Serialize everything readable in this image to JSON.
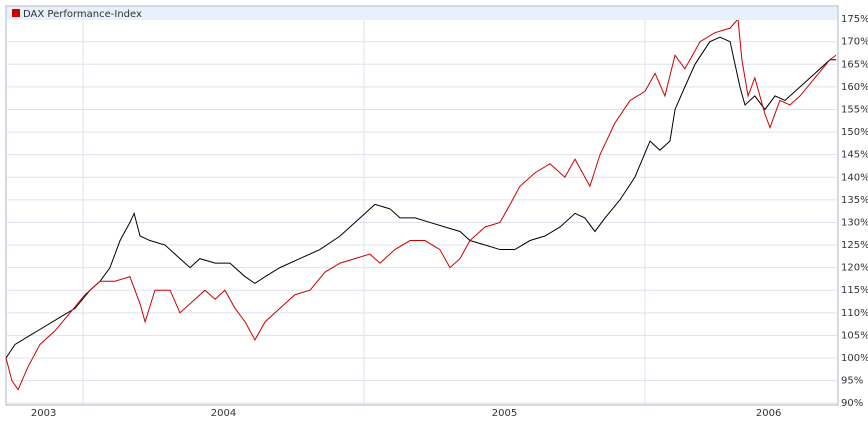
{
  "chart_data": {
    "type": "line",
    "legend": "top-left",
    "grid": true,
    "xlim": [
      2003.726,
      2006.687
    ],
    "xgrid": [
      2004,
      2005,
      2006
    ],
    "xticks": [
      {
        "value": 2003.86,
        "label": "2003"
      },
      {
        "value": 2004.5,
        "label": "2004"
      },
      {
        "value": 2005.5,
        "label": "2005"
      },
      {
        "value": 2006.44,
        "label": "2006"
      }
    ],
    "ylim": [
      89.6,
      177.9
    ],
    "yticks": [
      {
        "value": 90,
        "label": "90%"
      },
      {
        "value": 95,
        "label": "95%"
      },
      {
        "value": 100,
        "label": "100%"
      },
      {
        "value": 105,
        "label": "105%"
      },
      {
        "value": 110,
        "label": "110%"
      },
      {
        "value": 115,
        "label": "115%"
      },
      {
        "value": 120,
        "label": "120%"
      },
      {
        "value": 125,
        "label": "125%"
      },
      {
        "value": 130,
        "label": "130%"
      },
      {
        "value": 135,
        "label": "135%"
      },
      {
        "value": 140,
        "label": "140%"
      },
      {
        "value": 145,
        "label": "145%"
      },
      {
        "value": 150,
        "label": "150%"
      },
      {
        "value": 155,
        "label": "155%"
      },
      {
        "value": 160,
        "label": "160%"
      },
      {
        "value": 165,
        "label": "165%"
      },
      {
        "value": 170,
        "label": "170%"
      },
      {
        "value": 175,
        "label": "175%"
      }
    ],
    "series": [
      {
        "color": "#000000",
        "x": [
          2003.726,
          2003.758,
          2003.811,
          2003.865,
          2003.918,
          2003.972,
          2004.025,
          2004.061,
          2004.096,
          2004.132,
          2004.167,
          2004.182,
          2004.203,
          2004.238,
          2004.292,
          2004.345,
          2004.381,
          2004.416,
          2004.47,
          2004.523,
          2004.577,
          2004.612,
          2004.648,
          2004.701,
          2004.772,
          2004.843,
          2004.915,
          2004.968,
          2005.004,
          2005.039,
          2005.093,
          2005.128,
          2005.182,
          2005.235,
          2005.288,
          2005.342,
          2005.377,
          2005.431,
          2005.484,
          2005.537,
          2005.591,
          2005.644,
          2005.698,
          2005.751,
          2005.786,
          2005.822,
          2005.858,
          2005.911,
          2005.964,
          2006.018,
          2006.053,
          2006.089,
          2006.107,
          2006.142,
          2006.178,
          2006.231,
          2006.267,
          2006.303,
          2006.338,
          2006.356,
          2006.391,
          2006.427,
          2006.463,
          2006.498,
          2006.552,
          2006.605,
          2006.658,
          2006.68
        ],
        "values": [
          100,
          103,
          105,
          107,
          109,
          111,
          115,
          117,
          120,
          126,
          130,
          132,
          127,
          126,
          125,
          122,
          120,
          122,
          121,
          121,
          118,
          116.5,
          118,
          120,
          122,
          124,
          127,
          130,
          132,
          134,
          133,
          131,
          131,
          130,
          129,
          128,
          126,
          125,
          124,
          124,
          126,
          127,
          129,
          132,
          131,
          128,
          131,
          135,
          140,
          148,
          146,
          148,
          155,
          160,
          165,
          170,
          171,
          170,
          160,
          156,
          158,
          155,
          158,
          157,
          160,
          163,
          166,
          166
        ]
      },
      {
        "name": "DAX Performance-Index",
        "color": "#cc0000",
        "x": [
          2003.726,
          2003.747,
          2003.769,
          2003.804,
          2003.847,
          2003.9,
          2003.954,
          2004.007,
          2004.061,
          2004.114,
          2004.167,
          2004.203,
          2004.221,
          2004.256,
          2004.31,
          2004.345,
          2004.381,
          2004.434,
          2004.47,
          2004.505,
          2004.541,
          2004.577,
          2004.612,
          2004.648,
          2004.701,
          2004.754,
          2004.808,
          2004.861,
          2004.915,
          2004.968,
          2005.021,
          2005.057,
          2005.11,
          2005.164,
          2005.217,
          2005.27,
          2005.306,
          2005.342,
          2005.377,
          2005.431,
          2005.484,
          2005.52,
          2005.555,
          2005.609,
          2005.662,
          2005.715,
          2005.751,
          2005.804,
          2005.84,
          2005.893,
          2005.947,
          2006.0,
          2006.036,
          2006.071,
          2006.107,
          2006.142,
          2006.196,
          2006.249,
          2006.303,
          2006.331,
          2006.345,
          2006.367,
          2006.391,
          2006.427,
          2006.445,
          2006.48,
          2006.516,
          2006.552,
          2006.605,
          2006.658,
          2006.68
        ],
        "values": [
          100,
          95,
          93,
          98,
          103,
          106,
          110,
          114,
          117,
          117,
          118,
          112,
          108,
          115,
          115,
          110,
          112,
          115,
          113,
          115,
          111,
          108,
          104,
          108,
          111,
          114,
          115,
          119,
          121,
          122,
          123,
          121,
          124,
          126,
          126,
          124,
          120,
          122,
          126,
          129,
          130,
          134,
          138,
          141,
          143,
          140,
          144,
          138,
          145,
          152,
          157,
          159,
          163,
          158,
          167,
          164,
          170,
          172,
          173,
          175,
          166,
          158,
          162,
          154,
          151,
          157,
          156,
          158,
          162,
          166,
          167
        ]
      }
    ]
  }
}
